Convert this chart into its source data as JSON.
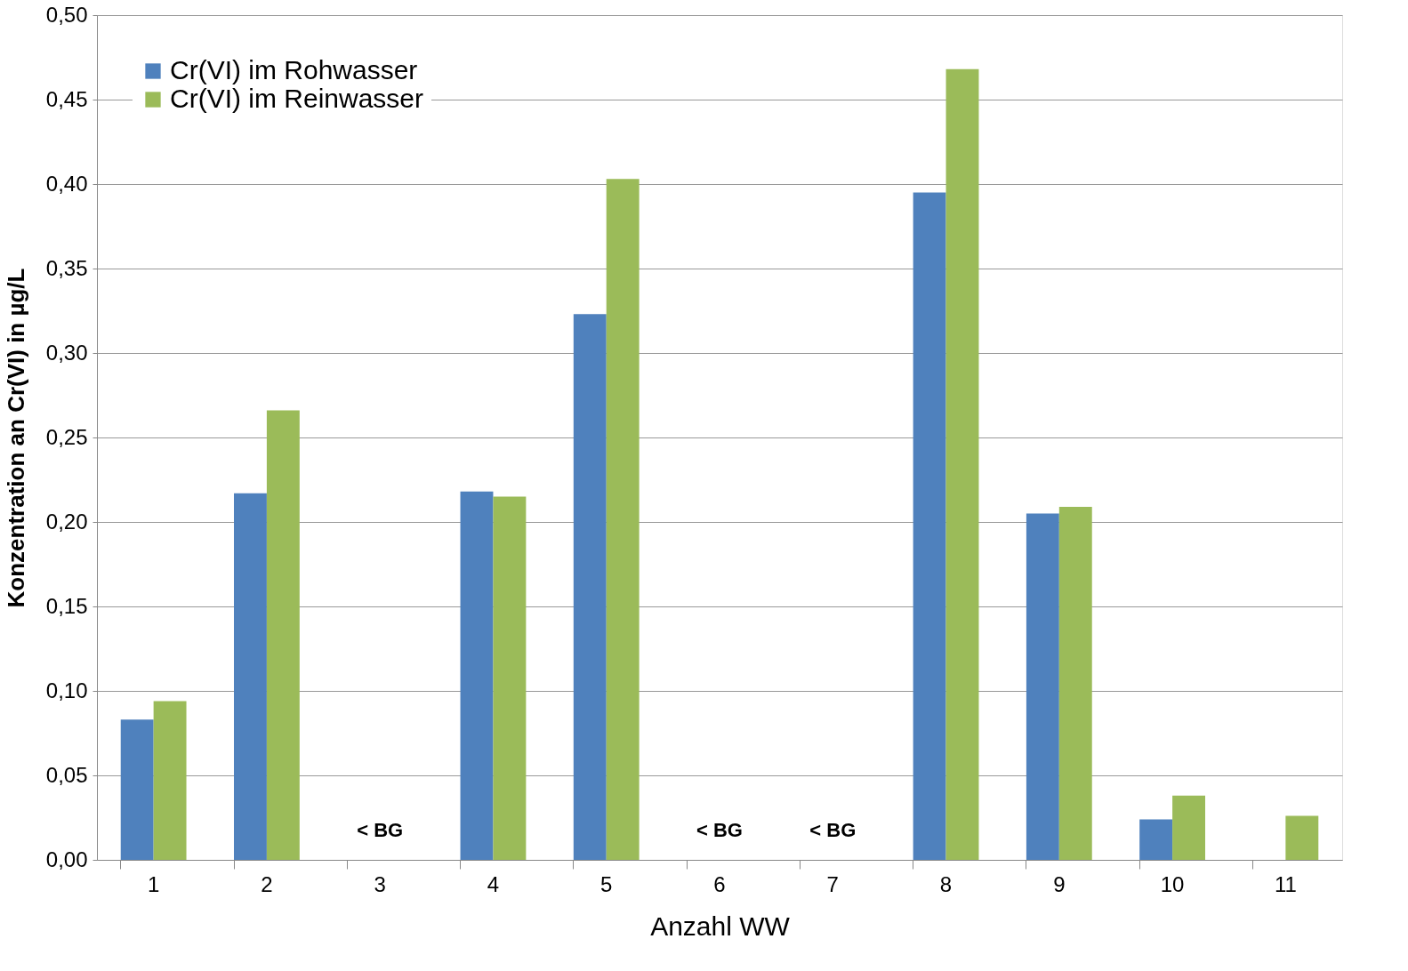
{
  "chart_data": {
    "type": "bar",
    "xlabel": "Anzahl WW",
    "ylabel": "Konzentration an Cr(VI) in µg/L",
    "categories": [
      "1",
      "2",
      "3",
      "4",
      "5",
      "6",
      "7",
      "8",
      "9",
      "10",
      "11"
    ],
    "series": [
      {
        "name": "Cr(VI) im Rohwasser",
        "color": "#4f81bd",
        "values": [
          0.083,
          0.217,
          null,
          0.218,
          0.323,
          null,
          null,
          0.395,
          0.205,
          0.024,
          null
        ]
      },
      {
        "name": "Cr(VI) im Reinwasser",
        "color": "#9bbb59",
        "values": [
          0.094,
          0.266,
          null,
          0.215,
          0.403,
          null,
          null,
          0.468,
          0.209,
          0.038,
          0.026
        ]
      }
    ],
    "ylim": [
      0,
      0.5
    ],
    "yticks": [
      {
        "value": 0,
        "label": "0,00"
      },
      {
        "value": 0.05,
        "label": "0,05"
      },
      {
        "value": 0.1,
        "label": "0,10"
      },
      {
        "value": 0.15,
        "label": "0,15"
      },
      {
        "value": 0.2,
        "label": "0,20"
      },
      {
        "value": 0.25,
        "label": "0,25"
      },
      {
        "value": 0.3,
        "label": "0,30"
      },
      {
        "value": 0.35,
        "label": "0,35"
      },
      {
        "value": 0.4,
        "label": "0,40"
      },
      {
        "value": 0.45,
        "label": "0,45"
      },
      {
        "value": 0.5,
        "label": "0,50"
      }
    ],
    "annotations": [
      "< BG",
      "< BG",
      "< BG"
    ],
    "grid": "y",
    "legend": "top left"
  }
}
